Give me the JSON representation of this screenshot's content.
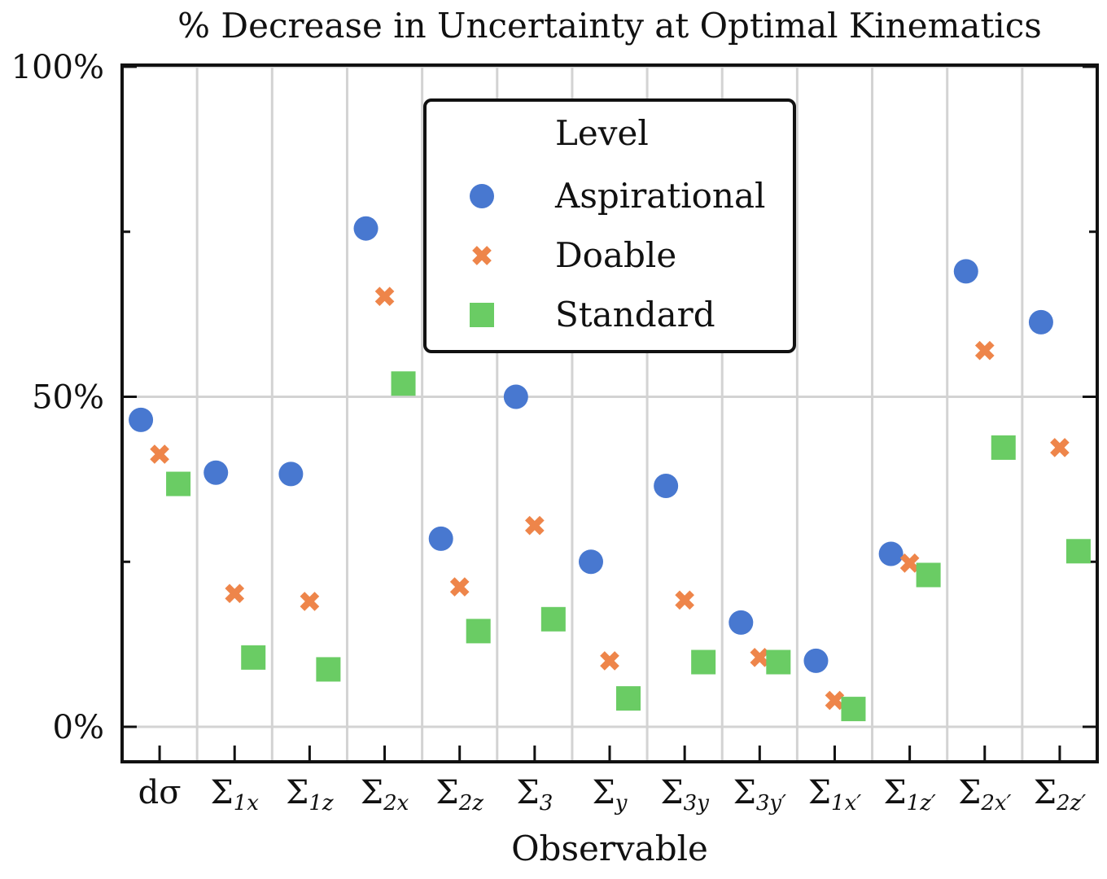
{
  "chart_data": {
    "type": "scatter",
    "title": "% Decrease in Uncertainty at Optimal Kinematics",
    "xlabel": "Observable",
    "ylabel": "",
    "ylim": [
      -5,
      100
    ],
    "yticks": [
      {
        "value": 0,
        "label": "0%"
      },
      {
        "value": 50,
        "label": "50%"
      },
      {
        "value": 100,
        "label": "100%"
      }
    ],
    "categories": [
      {
        "main": "dσ",
        "sub": ""
      },
      {
        "main": "Σ",
        "sub": "1x"
      },
      {
        "main": "Σ",
        "sub": "1z"
      },
      {
        "main": "Σ",
        "sub": "2x"
      },
      {
        "main": "Σ",
        "sub": "2z"
      },
      {
        "main": "Σ",
        "sub": "3"
      },
      {
        "main": "Σ",
        "sub": "y"
      },
      {
        "main": "Σ",
        "sub": "3y"
      },
      {
        "main": "Σ",
        "sub": "3y′"
      },
      {
        "main": "Σ",
        "sub": "1x′"
      },
      {
        "main": "Σ",
        "sub": "1z′"
      },
      {
        "main": "Σ",
        "sub": "2x′"
      },
      {
        "main": "Σ",
        "sub": "2z′"
      }
    ],
    "legend": {
      "title": "Level",
      "position": "top-center"
    },
    "series": [
      {
        "name": "Aspirational",
        "marker": "circle",
        "color": "#4878d0",
        "values": [
          46.5,
          38.5,
          38.3,
          75.5,
          28.5,
          50.0,
          25.0,
          36.5,
          15.8,
          10.0,
          26.2,
          69.0,
          61.3
        ]
      },
      {
        "name": "Doable",
        "marker": "x",
        "color": "#ee854a",
        "values": [
          41.3,
          20.2,
          19.0,
          65.2,
          21.2,
          30.5,
          10.0,
          19.2,
          10.5,
          4.0,
          24.8,
          57.0,
          42.3
        ]
      },
      {
        "name": "Standard",
        "marker": "square",
        "color": "#6acc64",
        "values": [
          36.8,
          10.5,
          8.7,
          52.0,
          14.5,
          16.3,
          4.3,
          9.8,
          9.8,
          2.7,
          23.0,
          42.3,
          26.6
        ]
      }
    ]
  }
}
